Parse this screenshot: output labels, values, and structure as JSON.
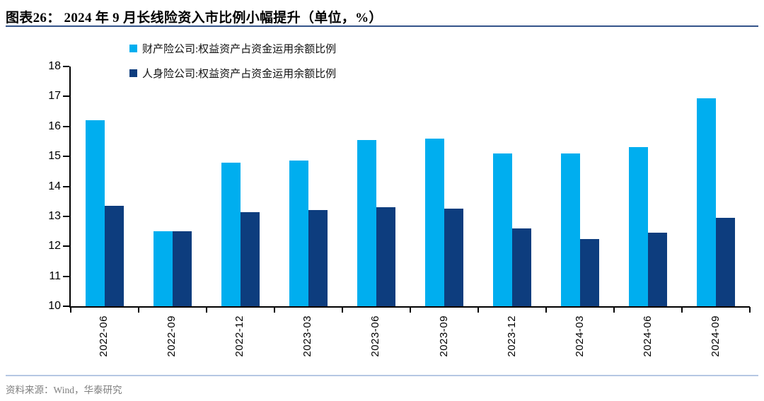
{
  "chart_data": {
    "type": "bar",
    "title": "图表26： 2024 年 9 月长线险资入市比例小幅提升（单位，%）",
    "categories": [
      "2022-06",
      "2022-09",
      "2022-12",
      "2023-03",
      "2023-06",
      "2023-09",
      "2023-12",
      "2024-03",
      "2024-06",
      "2024-09"
    ],
    "series": [
      {
        "name": "财产险公司:权益资产占资金运用余额比例",
        "color": "#00AEEF",
        "values": [
          16.2,
          12.5,
          14.8,
          14.85,
          15.55,
          15.6,
          15.1,
          15.1,
          15.3,
          16.95
        ]
      },
      {
        "name": "人身险公司:权益资产占资金运用余额比例",
        "color": "#0D3D7E",
        "values": [
          13.35,
          12.5,
          13.15,
          13.2,
          13.3,
          13.25,
          12.6,
          12.25,
          12.45,
          12.95
        ]
      }
    ],
    "ylim": [
      10,
      18
    ],
    "ytick_step": 1,
    "yticks": [
      10,
      11,
      12,
      13,
      14,
      15,
      16,
      17,
      18
    ],
    "grid": false,
    "legend_position": "top-left-stacked",
    "xlabel": "",
    "ylabel": ""
  },
  "footer": {
    "source": "资料来源：Wind，华泰研究"
  },
  "colors": {
    "title_rule": "#34548A",
    "footer_rule": "#B5C7E3",
    "footer_text": "#7F7F7F",
    "axis": "#000000",
    "series_property": "#00AEEF",
    "series_life": "#0D3D7E"
  }
}
